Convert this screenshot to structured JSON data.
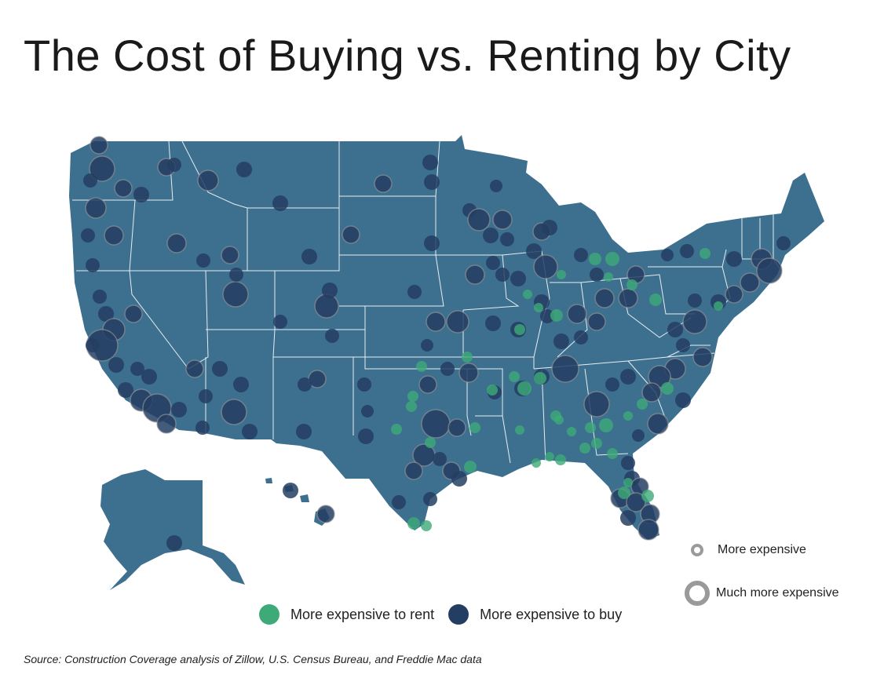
{
  "title": "The Cost of Buying vs. Renting by City",
  "legend": {
    "color": [
      {
        "label": "More expensive to rent",
        "color": "#3daa78"
      },
      {
        "label": "More expensive to buy",
        "color": "#243e63"
      }
    ],
    "size": [
      {
        "label": "More expensive"
      },
      {
        "label": "Much more expensive"
      }
    ]
  },
  "source": "Source: Construction Coverage analysis of Zillow, U.S. Census Bureau, and Freddie Mac data",
  "colors": {
    "land": "#3d6f8f",
    "border": "#e8eef3",
    "rent": "#3daa78",
    "buy": "#243e63",
    "ring": "#9a9a9a"
  }
}
